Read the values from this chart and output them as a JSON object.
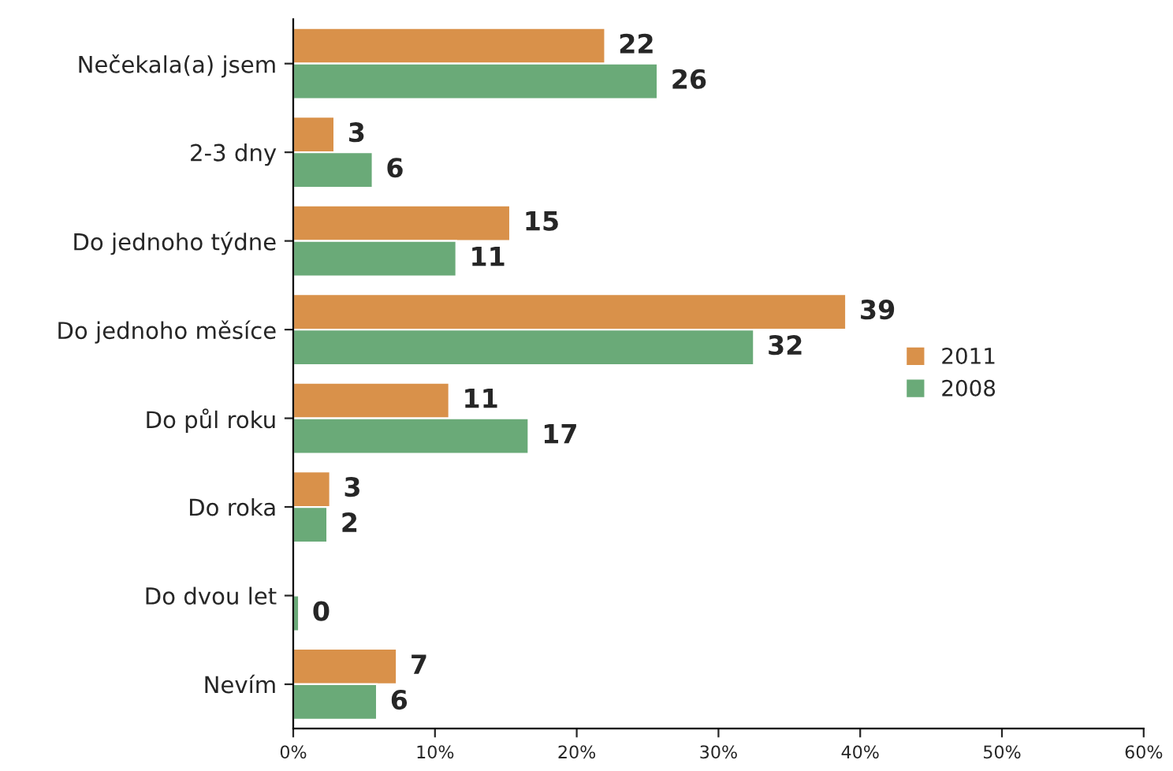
{
  "chart_data": {
    "type": "bar",
    "orientation": "horizontal",
    "categories": [
      "Nečekala(a) jsem",
      "2-3 dny",
      "Do jednoho týdne",
      "Do jednoho měsíce",
      "Do půl roku",
      "Do roka",
      "Do dvou let",
      "Nevím"
    ],
    "series": [
      {
        "name": "2011",
        "color": "#d9914a",
        "values": [
          22,
          2.9,
          15.3,
          39,
          11,
          2.6,
          null,
          7.3
        ],
        "value_labels": [
          "22",
          "3",
          "15",
          "39",
          "11",
          "3",
          null,
          "7"
        ]
      },
      {
        "name": "2008",
        "color": "#6aaa78",
        "values": [
          25.7,
          5.6,
          11.5,
          32.5,
          16.6,
          2.4,
          0.4,
          5.9
        ],
        "value_labels": [
          "26",
          "6",
          "11",
          "32",
          "17",
          "2",
          "0",
          "6"
        ]
      }
    ],
    "xlim": [
      0,
      60
    ],
    "xticks": [
      {
        "value": 0,
        "label": "0%"
      },
      {
        "value": 10,
        "label": "10%"
      },
      {
        "value": 20,
        "label": "20%"
      },
      {
        "value": 30,
        "label": "30%"
      },
      {
        "value": 40,
        "label": "40%"
      },
      {
        "value": 50,
        "label": "50%"
      },
      {
        "value": 60,
        "label": "60%"
      }
    ],
    "grid": false,
    "legend": "right"
  }
}
